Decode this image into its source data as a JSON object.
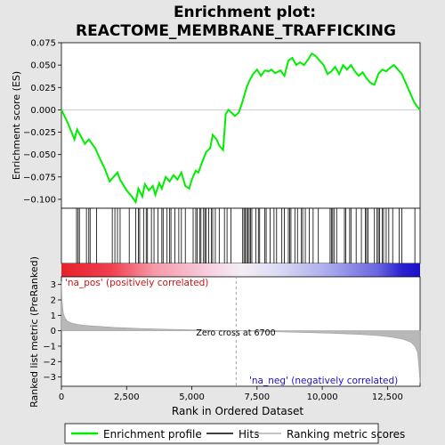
{
  "chart_data": {
    "type": "line",
    "title_line1": "Enrichment plot:",
    "title_line2": "REACTOME_MEMBRANE_TRAFFICKING",
    "top_panel": {
      "ylabel": "Enrichment score (ES)",
      "ylim": [
        -0.11,
        0.075
      ],
      "yticks": [
        -0.1,
        -0.075,
        -0.05,
        -0.025,
        0.0,
        0.025,
        0.05,
        0.075
      ],
      "ytick_labels": [
        "−0.100",
        "−0.075",
        "−0.050",
        "−0.025",
        "0.000",
        "0.025",
        "0.050",
        "0.075"
      ],
      "series_name": "Enrichment profile",
      "series_color": "#00ee00",
      "profile_x": [
        0,
        250,
        500,
        600,
        700,
        900,
        1050,
        1300,
        1450,
        1650,
        1850,
        2000,
        2150,
        2250,
        2500,
        2700,
        2850,
        2950,
        3100,
        3200,
        3350,
        3500,
        3600,
        3750,
        3850,
        4000,
        4150,
        4300,
        4450,
        4600,
        4750,
        4900,
        5000,
        5150,
        5250,
        5400,
        5550,
        5700,
        5800,
        5950,
        6050,
        6200,
        6300,
        6400,
        6550,
        6650,
        6800,
        6950,
        7100,
        7200,
        7350,
        7500,
        7650,
        7800,
        7950,
        8050,
        8200,
        8400,
        8550,
        8700,
        8850,
        9000,
        9150,
        9300,
        9450,
        9600,
        9750,
        9900,
        10050,
        10200,
        10350,
        10500,
        10650,
        10800,
        10950,
        11100,
        11250,
        11400,
        11550,
        11700,
        11850,
        12000,
        12150,
        12300,
        12450,
        12600,
        12750,
        12900,
        13050,
        13200,
        13350,
        13500,
        13600,
        13750
      ],
      "profile_y": [
        0.0,
        -0.015,
        -0.033,
        -0.022,
        -0.027,
        -0.038,
        -0.033,
        -0.043,
        -0.053,
        -0.065,
        -0.08,
        -0.075,
        -0.07,
        -0.078,
        -0.09,
        -0.097,
        -0.103,
        -0.088,
        -0.097,
        -0.083,
        -0.09,
        -0.085,
        -0.095,
        -0.082,
        -0.088,
        -0.075,
        -0.08,
        -0.073,
        -0.078,
        -0.07,
        -0.085,
        -0.088,
        -0.078,
        -0.068,
        -0.07,
        -0.058,
        -0.047,
        -0.043,
        -0.028,
        -0.033,
        -0.04,
        -0.045,
        -0.005,
        0.0,
        -0.004,
        -0.007,
        -0.003,
        0.01,
        0.025,
        0.032,
        0.04,
        0.045,
        0.038,
        0.044,
        0.043,
        0.045,
        0.041,
        0.044,
        0.038,
        0.055,
        0.058,
        0.05,
        0.053,
        0.05,
        0.056,
        0.063,
        0.06,
        0.055,
        0.05,
        0.04,
        0.043,
        0.048,
        0.04,
        0.05,
        0.045,
        0.05,
        0.043,
        0.038,
        0.042,
        0.035,
        0.03,
        0.028,
        0.04,
        0.045,
        0.043,
        0.047,
        0.05,
        0.045,
        0.04,
        0.03,
        0.02,
        0.01,
        0.005,
        0.0
      ]
    },
    "hits_panel": {
      "series_name": "Hits",
      "hit_positions": [
        580,
        640,
        690,
        960,
        1050,
        1100,
        1350,
        1950,
        2050,
        2150,
        2250,
        2600,
        2850,
        2950,
        3000,
        3150,
        3250,
        3300,
        3450,
        3550,
        3700,
        3850,
        3900,
        4050,
        4150,
        4200,
        4350,
        4500,
        4600,
        4750,
        5050,
        5150,
        5200,
        5300,
        5350,
        5450,
        5500,
        5550,
        5650,
        5750,
        5800,
        5900,
        6050,
        6250,
        6350,
        6500,
        6950,
        7000,
        7050,
        7100,
        7150,
        7200,
        7250,
        7300,
        7450,
        7550,
        7600,
        7800,
        7850,
        8000,
        8150,
        8250,
        8450,
        8550,
        8700,
        8750,
        8800,
        8950,
        9050,
        9200,
        9250,
        9350,
        9500,
        9650,
        9850,
        10300,
        10350,
        10400,
        10450,
        10550,
        10850,
        10900,
        11050,
        11100,
        11300,
        11500,
        11650,
        11700,
        11750,
        12000,
        12100,
        12150,
        12200,
        12300,
        12350,
        12450,
        12550,
        12700,
        12950,
        13050,
        13550
      ]
    },
    "colorbar": {
      "label_pos": "'na_pos' (positively correlated)",
      "label_neg": "'na_neg' (negatively correlated)",
      "pos_color": "#e8202a",
      "neg_color": "#2a20d0"
    },
    "bottom_panel": {
      "ylabel": "Ranked list metric (PreRanked)",
      "xlabel": "Rank in Ordered Dataset",
      "ylim": [
        -3.6,
        3.5
      ],
      "yticks": [
        -3,
        -2,
        -1,
        0,
        1,
        2,
        3
      ],
      "ytick_labels": [
        "−3",
        "−2",
        "−1",
        "0",
        "1",
        "2",
        "3"
      ],
      "zero_cross_text": "Zero cross at 6700",
      "zero_cross": 6700,
      "series_name": "Ranking metric scores",
      "metric_x": [
        0,
        30,
        80,
        150,
        250,
        400,
        600,
        900,
        1300,
        2000,
        3000,
        4000,
        5000,
        6000,
        6700,
        7500,
        8500,
        9500,
        10500,
        11500,
        12200,
        12700,
        13100,
        13400,
        13550,
        13650,
        13700,
        13750
      ],
      "metric_y": [
        3.2,
        1.8,
        1.1,
        0.8,
        0.6,
        0.5,
        0.42,
        0.35,
        0.3,
        0.22,
        0.15,
        0.1,
        0.06,
        0.02,
        0.0,
        -0.04,
        -0.08,
        -0.12,
        -0.17,
        -0.24,
        -0.32,
        -0.42,
        -0.55,
        -0.75,
        -1.0,
        -1.4,
        -2.2,
        -3.4
      ]
    },
    "x_axis": {
      "xlim": [
        0,
        13750
      ],
      "xticks": [
        0,
        2500,
        5000,
        7500,
        10000,
        12500
      ],
      "xtick_labels": [
        "0",
        "2,500",
        "5,000",
        "7,500",
        "10,000",
        "12,500"
      ]
    },
    "legend": {
      "placement": "bottom",
      "items": [
        {
          "label": "Enrichment profile",
          "color": "#00ee00"
        },
        {
          "label": "Hits",
          "color": "#000000"
        },
        {
          "label": "Ranking metric scores",
          "color": "#b0b0b0"
        }
      ]
    }
  }
}
